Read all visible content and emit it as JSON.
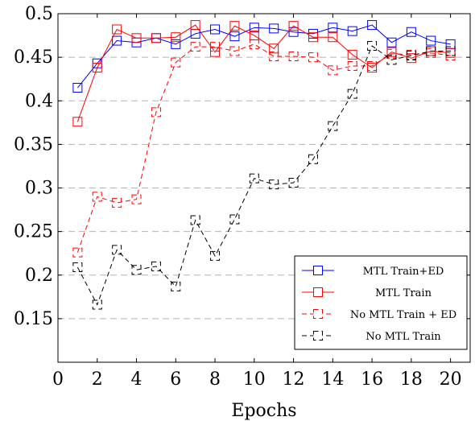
{
  "chart_data": {
    "type": "line",
    "title": "",
    "xlabel": "Epochs",
    "ylabel": "",
    "xlim": [
      0,
      21
    ],
    "ylim": [
      0.1,
      0.5
    ],
    "xticks": [
      0,
      2,
      4,
      6,
      8,
      10,
      12,
      14,
      16,
      18,
      20
    ],
    "yticks": [
      0.15,
      0.2,
      0.25,
      0.3,
      0.35,
      0.4,
      0.45,
      0.5
    ],
    "xtick_labels": [
      "0",
      "2",
      "4",
      "6",
      "8",
      "10",
      "12",
      "14",
      "16",
      "18",
      "20"
    ],
    "ytick_labels": [
      "0.15",
      "0.2",
      "0.25",
      "0.3",
      "0.35",
      "0.4",
      "0.45",
      "0.5"
    ],
    "grid": "horizontal dashed",
    "legend_position": "bottom-right",
    "x": [
      1,
      2,
      3,
      4,
      5,
      6,
      7,
      8,
      9,
      10,
      11,
      12,
      13,
      14,
      15,
      16,
      17,
      18,
      19,
      20
    ],
    "series": [
      {
        "name": "MTL Train+ED",
        "color": "#0000ff",
        "line_style": "solid",
        "marker": "square",
        "values": [
          0.415,
          0.443,
          0.469,
          0.467,
          0.472,
          0.465,
          0.477,
          0.482,
          0.474,
          0.484,
          0.483,
          0.479,
          0.477,
          0.484,
          0.48,
          0.487,
          0.467,
          0.479,
          0.469,
          0.465
        ]
      },
      {
        "name": "MTL Train",
        "color": "#ff0000",
        "line_style": "solid",
        "marker": "square",
        "values": [
          0.376,
          0.438,
          0.482,
          0.472,
          0.472,
          0.473,
          0.487,
          0.456,
          0.486,
          0.475,
          0.46,
          0.486,
          0.473,
          0.473,
          0.453,
          0.438,
          0.456,
          0.449,
          0.457,
          0.455
        ]
      },
      {
        "name": "No MTL Train + ED",
        "color": "#ff0000",
        "line_style": "dashed",
        "marker": "square",
        "values": [
          0.226,
          0.29,
          0.283,
          0.287,
          0.387,
          0.444,
          0.462,
          0.462,
          0.457,
          0.465,
          0.451,
          0.451,
          0.45,
          0.435,
          0.44,
          0.44,
          0.454,
          0.453,
          0.455,
          0.452
        ]
      },
      {
        "name": "No MTL Train",
        "color": "#000000",
        "line_style": "dashed",
        "marker": "square",
        "values": [
          0.209,
          0.166,
          0.229,
          0.206,
          0.21,
          0.187,
          0.263,
          0.222,
          0.264,
          0.311,
          0.304,
          0.306,
          0.333,
          0.371,
          0.408,
          0.463,
          0.447,
          0.452,
          0.457,
          0.457
        ]
      }
    ]
  }
}
